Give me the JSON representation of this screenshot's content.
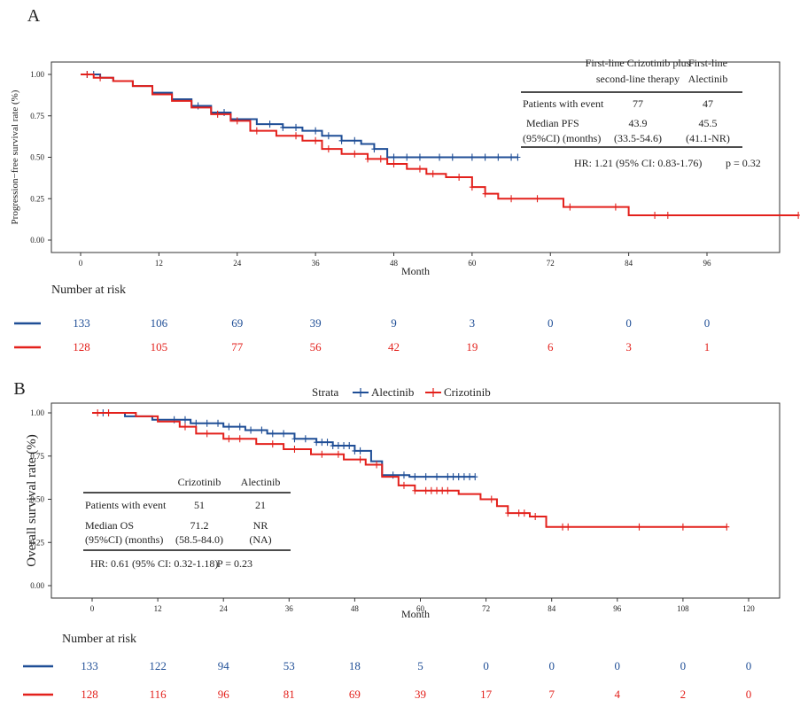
{
  "colors": {
    "alectinib": "#1f4e96",
    "crizotinib": "#e3211c",
    "axis": "#333333"
  },
  "chart_data": [
    {
      "panel": "A",
      "type": "line",
      "ylabel": "Progression−free survival rate (%)",
      "xlabel": "Month",
      "xticks": [
        0,
        12,
        24,
        36,
        48,
        60,
        72,
        84,
        96
      ],
      "yticks": [
        "0.00",
        "0.25",
        "0.50",
        "0.75",
        "1.00"
      ],
      "xlim": [
        -2,
        112
      ],
      "ylim": [
        -0.06,
        1.04
      ],
      "series": [
        {
          "name": "First-line Alectinib",
          "color_key": "alectinib",
          "steps": [
            [
              0,
              1.0
            ],
            [
              3,
              0.98
            ],
            [
              5,
              0.96
            ],
            [
              8,
              0.93
            ],
            [
              11,
              0.89
            ],
            [
              14,
              0.85
            ],
            [
              17,
              0.81
            ],
            [
              20,
              0.77
            ],
            [
              23,
              0.73
            ],
            [
              27,
              0.7
            ],
            [
              31,
              0.68
            ],
            [
              34,
              0.66
            ],
            [
              37,
              0.63
            ],
            [
              40,
              0.6
            ],
            [
              43,
              0.58
            ],
            [
              45,
              0.55
            ],
            [
              47,
              0.5
            ],
            [
              67,
              0.5
            ]
          ],
          "censor": [
            1,
            2,
            18,
            22,
            29,
            31,
            33,
            36,
            38,
            40,
            42,
            45,
            48,
            50,
            52,
            55,
            57,
            60,
            62,
            64,
            66,
            67
          ]
        },
        {
          "name": "First-line Crizotinib plus second-line therapy",
          "color_key": "crizotinib",
          "steps": [
            [
              0,
              1.0
            ],
            [
              2,
              0.98
            ],
            [
              5,
              0.96
            ],
            [
              8,
              0.93
            ],
            [
              11,
              0.88
            ],
            [
              14,
              0.84
            ],
            [
              17,
              0.8
            ],
            [
              20,
              0.76
            ],
            [
              23,
              0.72
            ],
            [
              26,
              0.66
            ],
            [
              30,
              0.63
            ],
            [
              34,
              0.6
            ],
            [
              37,
              0.55
            ],
            [
              40,
              0.52
            ],
            [
              44,
              0.49
            ],
            [
              47,
              0.46
            ],
            [
              50,
              0.43
            ],
            [
              53,
              0.4
            ],
            [
              56,
              0.38
            ],
            [
              60,
              0.32
            ],
            [
              62,
              0.28
            ],
            [
              64,
              0.25
            ],
            [
              69,
              0.25
            ],
            [
              74,
              0.2
            ],
            [
              84,
              0.15
            ],
            [
              110,
              0.15
            ]
          ],
          "censor": [
            1,
            3,
            21,
            24,
            27,
            33,
            36,
            38,
            42,
            44,
            46,
            48,
            52,
            54,
            58,
            60,
            62,
            66,
            70,
            75,
            82,
            88,
            90,
            110
          ]
        }
      ],
      "annotation": {
        "header_col1": [
          "First-line Crizotinib  plus",
          "second-line therapy"
        ],
        "header_col2": [
          "First-line",
          "Alectinib"
        ],
        "row1_label": "Patients with event",
        "row1_col1": "77",
        "row1_col2": "47",
        "row2_label": [
          "Median PFS",
          "(95%CI) (months)"
        ],
        "row2_col1": [
          "43.9",
          "(33.5-54.6)"
        ],
        "row2_col2": [
          "45.5",
          "(41.1-NR)"
        ],
        "footer": "HR: 1.21 (95% CI: 0.83-1.76)",
        "p": "p = 0.32"
      },
      "risk_title": "Number at risk",
      "risk_alectinib": [
        "133",
        "106",
        "69",
        "39",
        "9",
        "3",
        "0",
        "0",
        "0"
      ],
      "risk_crizotinib": [
        "128",
        "105",
        "77",
        "56",
        "42",
        "19",
        "6",
        "3",
        "1"
      ]
    },
    {
      "panel": "B",
      "type": "line",
      "ylabel": "Overall survival rate (%)",
      "xlabel": "Month",
      "xticks": [
        0,
        12,
        24,
        36,
        48,
        60,
        72,
        84,
        96,
        108,
        120
      ],
      "yticks": [
        "0.00",
        "0.25",
        "0.50",
        "0.75",
        "1.00"
      ],
      "xlim": [
        -5,
        126
      ],
      "ylim": [
        -0.05,
        1.06
      ],
      "legend": {
        "title": "Strata",
        "items": [
          "Alectinib",
          "Crizotinib"
        ]
      },
      "series": [
        {
          "name": "Alectinib",
          "color_key": "alectinib",
          "steps": [
            [
              0,
              1.0
            ],
            [
              6,
              0.98
            ],
            [
              11,
              0.96
            ],
            [
              18,
              0.94
            ],
            [
              24,
              0.92
            ],
            [
              28,
              0.9
            ],
            [
              32,
              0.88
            ],
            [
              37,
              0.85
            ],
            [
              41,
              0.83
            ],
            [
              44,
              0.81
            ],
            [
              48,
              0.78
            ],
            [
              51,
              0.72
            ],
            [
              53,
              0.64
            ],
            [
              58,
              0.63
            ],
            [
              70,
              0.63
            ]
          ],
          "censor": [
            2,
            3,
            15,
            17,
            19,
            21,
            23,
            25,
            27,
            29,
            31,
            33,
            35,
            37,
            39,
            41,
            42,
            43,
            44,
            45,
            46,
            47,
            48,
            49,
            55,
            57,
            59,
            61,
            63,
            65,
            66,
            67,
            68,
            69,
            70
          ]
        },
        {
          "name": "Crizotinib",
          "color_key": "crizotinib",
          "steps": [
            [
              0,
              1.0
            ],
            [
              8,
              0.98
            ],
            [
              12,
              0.95
            ],
            [
              16,
              0.92
            ],
            [
              19,
              0.88
            ],
            [
              24,
              0.85
            ],
            [
              30,
              0.82
            ],
            [
              35,
              0.79
            ],
            [
              40,
              0.76
            ],
            [
              46,
              0.73
            ],
            [
              50,
              0.7
            ],
            [
              53,
              0.63
            ],
            [
              56,
              0.58
            ],
            [
              59,
              0.55
            ],
            [
              67,
              0.53
            ],
            [
              71,
              0.5
            ],
            [
              74,
              0.46
            ],
            [
              76,
              0.42
            ],
            [
              80,
              0.4
            ],
            [
              83,
              0.34
            ],
            [
              116,
              0.34
            ]
          ],
          "censor": [
            1,
            3,
            17,
            21,
            25,
            27,
            33,
            37,
            42,
            45,
            49,
            52,
            57,
            59,
            61,
            62,
            63,
            64,
            65,
            73,
            76,
            78,
            79,
            81,
            86,
            87,
            100,
            108,
            116
          ]
        }
      ],
      "annotation": {
        "header_col1": "Crizotinib",
        "header_col2": "Alectinib",
        "row1_label": "Patients with event",
        "row1_col1": "51",
        "row1_col2": "21",
        "row2_label": [
          "Median OS",
          "(95%CI) (months)"
        ],
        "row2_col1": [
          "71.2",
          "(58.5-84.0)"
        ],
        "row2_col2": [
          "NR",
          "(NA)"
        ],
        "footer": "HR: 0.61 (95% CI: 0.32-1.18)",
        "p": "P = 0.23"
      },
      "risk_title": "Number at risk",
      "risk_alectinib": [
        "133",
        "122",
        "94",
        "53",
        "18",
        "5",
        "0",
        "0",
        "0",
        "0",
        "0"
      ],
      "risk_crizotinib": [
        "128",
        "116",
        "96",
        "81",
        "69",
        "39",
        "17",
        "7",
        "4",
        "2",
        "0"
      ]
    }
  ],
  "panel_labels": [
    "A",
    "B"
  ]
}
